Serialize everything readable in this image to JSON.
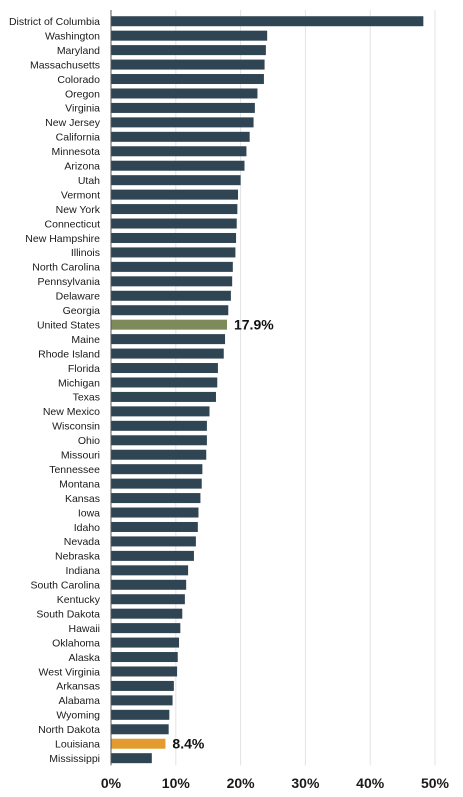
{
  "chart_data": {
    "type": "bar",
    "orientation": "horizontal",
    "title": "",
    "xlabel": "",
    "ylabel": "",
    "xlim": [
      0,
      50
    ],
    "grid": true,
    "legend": "none",
    "categories": [
      "District of Columbia",
      "Washington",
      "Maryland",
      "Massachusetts",
      "Colorado",
      "Oregon",
      "Virginia",
      "New Jersey",
      "California",
      "Minnesota",
      "Arizona",
      "Utah",
      "Vermont",
      "New York",
      "Connecticut",
      "New Hampshire",
      "Illinois",
      "North Carolina",
      "Pennsylvania",
      "Delaware",
      "Georgia",
      "United States",
      "Maine",
      "Rhode Island",
      "Florida",
      "Michigan",
      "Texas",
      "New Mexico",
      "Wisconsin",
      "Ohio",
      "Missouri",
      "Tennessee",
      "Montana",
      "Kansas",
      "Iowa",
      "Idaho",
      "Nevada",
      "Nebraska",
      "Indiana",
      "South Carolina",
      "Kentucky",
      "South Dakota",
      "Hawaii",
      "Oklahoma",
      "Alaska",
      "West Virginia",
      "Arkansas",
      "Alabama",
      "Wyoming",
      "North Dakota",
      "Louisiana",
      "Mississippi"
    ],
    "values": [
      48.2,
      24.1,
      23.9,
      23.7,
      23.6,
      22.6,
      22.2,
      22.0,
      21.4,
      20.9,
      20.6,
      20.0,
      19.6,
      19.5,
      19.4,
      19.3,
      19.2,
      18.8,
      18.7,
      18.5,
      18.1,
      17.9,
      17.6,
      17.4,
      16.5,
      16.4,
      16.2,
      15.2,
      14.8,
      14.8,
      14.7,
      14.1,
      14.0,
      13.8,
      13.5,
      13.4,
      13.1,
      12.8,
      11.9,
      11.6,
      11.4,
      11.0,
      10.7,
      10.5,
      10.3,
      10.2,
      9.7,
      9.5,
      9.0,
      8.9,
      8.4,
      6.3
    ],
    "highlights": [
      {
        "category": "United States",
        "label": "17.9%",
        "color": "#7d8a5a"
      },
      {
        "category": "Louisiana",
        "label": "8.4%",
        "color": "#e39b2f"
      }
    ],
    "x_ticks": [
      0,
      10,
      20,
      30,
      40,
      50
    ],
    "x_tick_labels": [
      "0%",
      "10%",
      "20%",
      "30%",
      "40%",
      "50%"
    ],
    "colors": {
      "bar": "#2f4553",
      "grid": "#e3e3e3",
      "axis": "#555555"
    }
  }
}
